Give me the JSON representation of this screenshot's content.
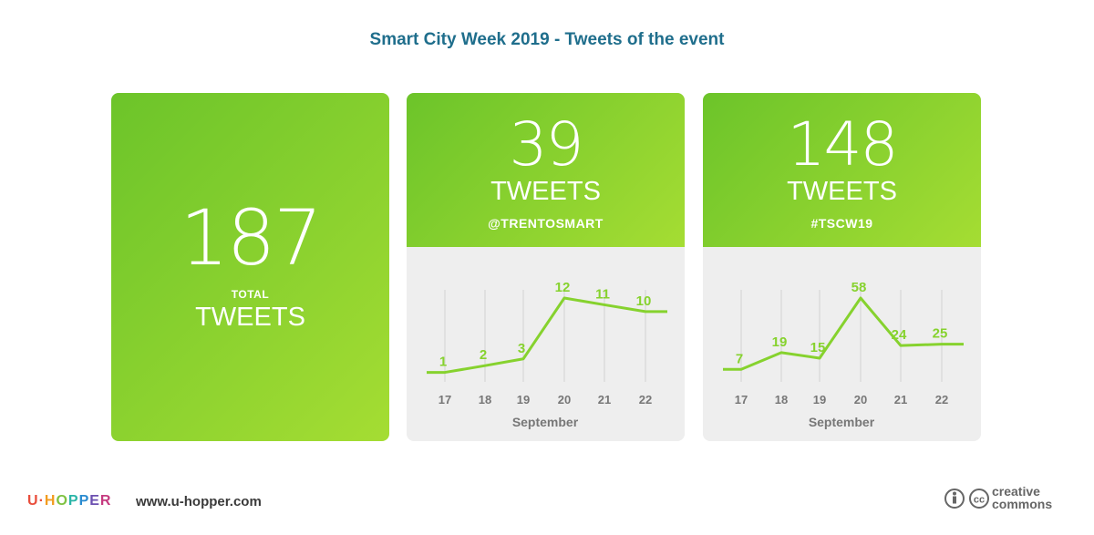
{
  "title": "Smart City Week 2019 - Tweets of the event",
  "total_card": {
    "number": "187",
    "small_label": "TOTAL",
    "label": "TWEETS"
  },
  "cards": [
    {
      "number": "39",
      "label": "TWEETS",
      "handle": "@TRENTOSMART"
    },
    {
      "number": "148",
      "label": "TWEETS",
      "handle": "#TSCW19"
    }
  ],
  "footer": {
    "logo": "U·HOPPER",
    "url": "www.u-hopper.com",
    "license": "creative commons"
  },
  "colors": {
    "accent": "#7ed321",
    "line": "#86d22e",
    "title": "#1f6e8c",
    "axis_text": "#777777",
    "grid": "#dcdcdc"
  },
  "chart_data": [
    {
      "type": "line",
      "categories": [
        "17",
        "18",
        "19",
        "20",
        "21",
        "22"
      ],
      "values": [
        1,
        2,
        3,
        12,
        11,
        10
      ],
      "xlabel": "September",
      "ylabel": "",
      "ylim": [
        0,
        12
      ],
      "grid": true
    },
    {
      "type": "line",
      "categories": [
        "17",
        "18",
        "19",
        "20",
        "21",
        "22"
      ],
      "values": [
        7,
        19,
        15,
        58,
        24,
        25
      ],
      "xlabel": "September",
      "ylabel": "",
      "ylim": [
        0,
        58
      ],
      "grid": true
    }
  ]
}
